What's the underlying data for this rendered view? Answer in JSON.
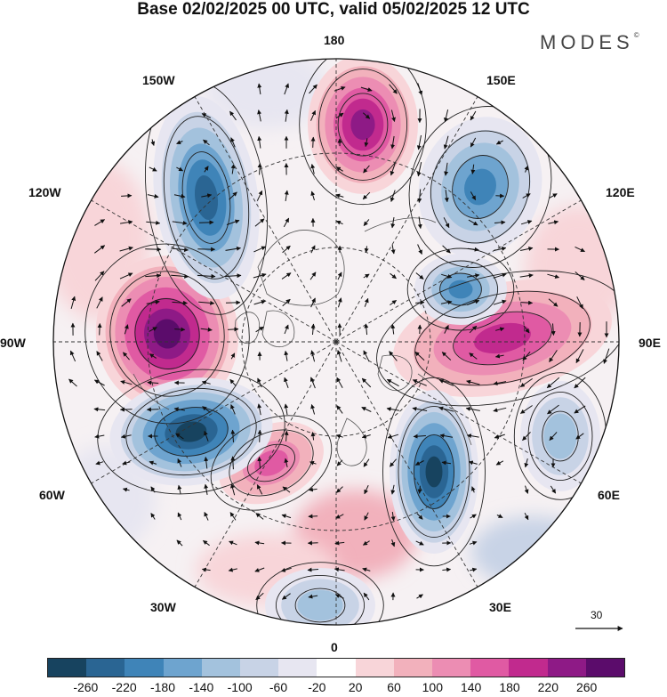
{
  "title": "Base 02/02/2025 00 UTC, valid 05/02/2025 12 UTC",
  "brand": "MODES",
  "brand_mark": "©",
  "longitude_labels": {
    "top": "180",
    "bottom": "0",
    "left": "90W",
    "right": "90E",
    "upper_left_1": "150W",
    "upper_left_2": "120W",
    "upper_right_1": "150E",
    "upper_right_2": "120E",
    "lower_left_1": "60W",
    "lower_left_2": "30W",
    "lower_right_1": "60E",
    "lower_right_2": "30E"
  },
  "reference_vector_label": "30",
  "colorbar": {
    "ticks": [
      "-260",
      "-220",
      "-180",
      "-140",
      "-100",
      "-60",
      "-20",
      "20",
      "60",
      "100",
      "140",
      "180",
      "220",
      "260"
    ],
    "colors": [
      "#17435f",
      "#2a6593",
      "#3f84b8",
      "#6ea4cf",
      "#a3c2dd",
      "#c8d3e6",
      "#e7e6f1",
      "#ffffff",
      "#f8d5d9",
      "#f2b1bc",
      "#ec8db3",
      "#e05aa3",
      "#c12a8e",
      "#8e1a86",
      "#5b0c6b"
    ]
  },
  "anomalies": [
    {
      "id": "high-pacific",
      "sign": "positive",
      "level": 220
    },
    {
      "id": "high-canada",
      "sign": "positive",
      "level": 260
    },
    {
      "id": "high-siberia",
      "sign": "positive",
      "level": 180
    },
    {
      "id": "high-atlantic",
      "sign": "positive",
      "level": 140
    },
    {
      "id": "low-alaska",
      "sign": "negative",
      "level": -220
    },
    {
      "id": "low-northatlantic",
      "sign": "negative",
      "level": -260
    },
    {
      "id": "low-europe",
      "sign": "negative",
      "level": -260
    },
    {
      "id": "low-eastsiberia",
      "sign": "negative",
      "level": -180
    },
    {
      "id": "low-kara",
      "sign": "negative",
      "level": -180
    },
    {
      "id": "low-asia",
      "sign": "negative",
      "level": -100
    },
    {
      "id": "low-southatlantic",
      "sign": "negative",
      "level": -100
    }
  ]
}
